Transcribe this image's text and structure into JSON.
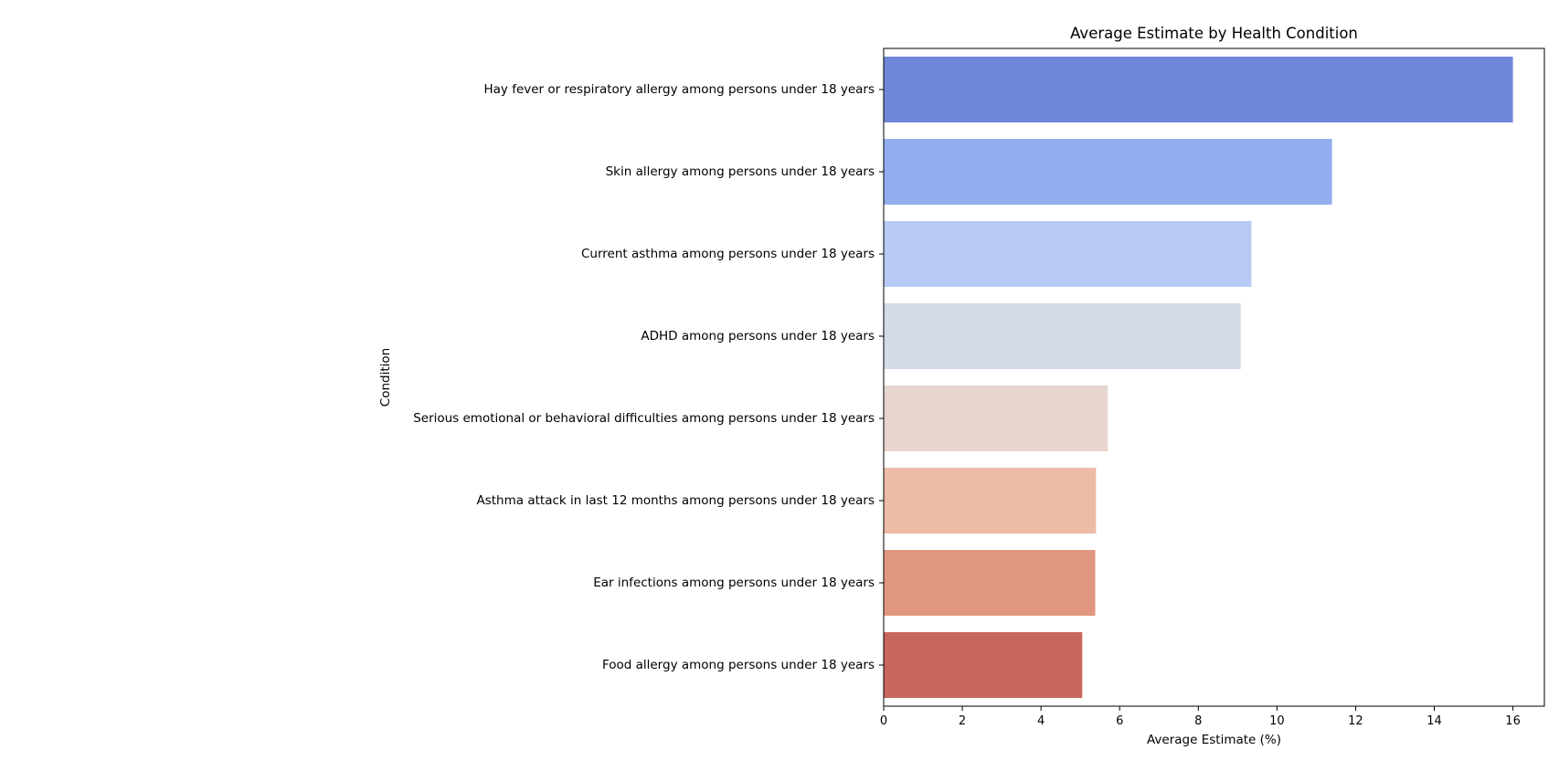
{
  "chart_data": {
    "type": "bar",
    "orientation": "horizontal",
    "title": "Average Estimate by Health Condition",
    "xlabel": "Average Estimate (%)",
    "ylabel": "Condition",
    "xlim": [
      0,
      16.8
    ],
    "xticks": [
      0,
      2,
      4,
      6,
      8,
      10,
      12,
      14,
      16
    ],
    "grid": false,
    "categories": [
      "Hay fever or respiratory allergy among persons under 18 years",
      "Skin allergy among persons under 18 years",
      "Current asthma among persons under 18 years",
      "ADHD among persons under 18 years",
      "Serious emotional or behavioral difficulties among persons under 18 years",
      "Asthma attack in last 12 months among persons under 18 years",
      "Ear infections among persons under 18 years",
      "Food allergy among persons under 18 years"
    ],
    "values": [
      16.0,
      11.4,
      9.35,
      9.08,
      5.7,
      5.4,
      5.38,
      5.05
    ],
    "colors": [
      "#6f87d8",
      "#92aeee",
      "#b6caf4",
      "#d3dbe9",
      "#e6d6ce",
      "#ecbca7",
      "#e19680",
      "#c8675c"
    ]
  }
}
